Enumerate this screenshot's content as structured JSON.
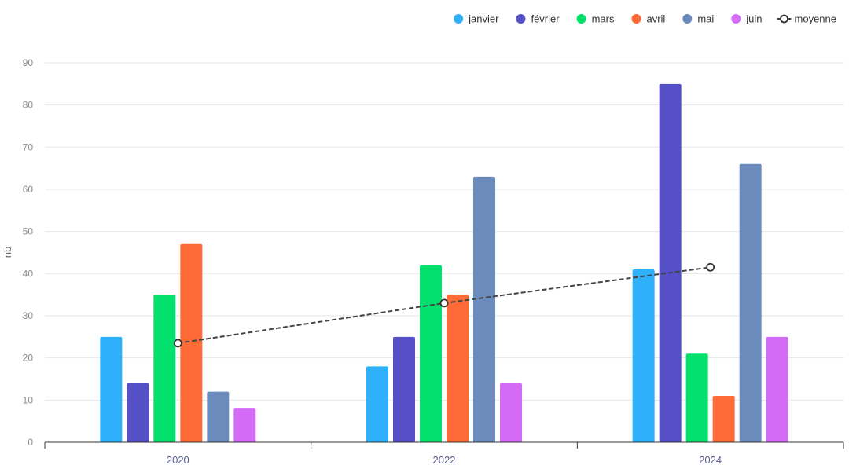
{
  "chart_data": {
    "type": "bar",
    "categories": [
      "2020",
      "2022",
      "2024"
    ],
    "series": [
      {
        "name": "janvier",
        "color": "#2eb0fb",
        "values": [
          25,
          18,
          41
        ]
      },
      {
        "name": "février",
        "color": "#5650c6",
        "values": [
          14,
          25,
          85
        ]
      },
      {
        "name": "mars",
        "color": "#04e06e",
        "values": [
          35,
          42,
          21
        ]
      },
      {
        "name": "avril",
        "color": "#ff6b37",
        "values": [
          47,
          35,
          11
        ]
      },
      {
        "name": "mai",
        "color": "#6b8bbc",
        "values": [
          12,
          63,
          66
        ]
      },
      {
        "name": "juin",
        "color": "#d36bf7",
        "values": [
          8,
          14,
          25
        ]
      }
    ],
    "line_series": {
      "name": "moyenne",
      "color": "#444444",
      "values": [
        23.5,
        33,
        41.5
      ],
      "style": "dashed"
    },
    "ylabel": "nb",
    "xlabel": "",
    "ylim": [
      0,
      90
    ],
    "yticks": [
      0,
      10,
      20,
      30,
      40,
      50,
      60,
      70,
      80,
      90
    ],
    "legend_position": "top-right",
    "grid": true
  }
}
